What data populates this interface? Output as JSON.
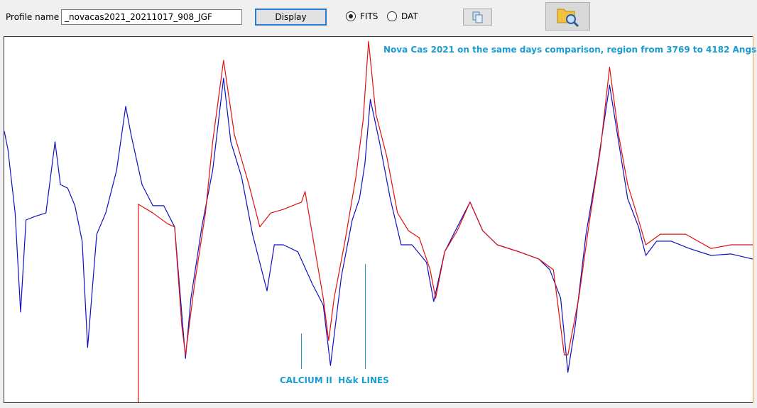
{
  "ui": {
    "profile_label": "Profile name :",
    "profile_value": "_novacas2021_20211017_908_JGF",
    "display_button": "Display",
    "radio_fits": "FITS",
    "radio_dat": "DAT"
  },
  "chart_data": {
    "type": "line",
    "title": "Nova Cas 2021 on the same days comparison, region from 3769 to 4182 Angs.",
    "annotations": [
      "CALCIUM II  H&k LINES"
    ],
    "xlim": [
      3769,
      4182
    ],
    "ylim": [
      0,
      100
    ],
    "grid": false,
    "series": [
      {
        "color": "#1010c0",
        "x": [
          3769,
          3771,
          3775,
          3778,
          3781,
          3786,
          3792,
          3797,
          3800,
          3804,
          3808,
          3812,
          3815,
          3820,
          3825,
          3831,
          3836,
          3839,
          3845,
          3851,
          3857,
          3863,
          3869,
          3872,
          3878,
          3884,
          3890,
          3894,
          3900,
          3906,
          3914,
          3918,
          3923,
          3931,
          3939,
          3945,
          3949,
          3955,
          3961,
          3965,
          3968,
          3971,
          3976,
          3982,
          3988,
          3994,
          4002,
          4006,
          4012,
          4019,
          4026,
          4033,
          4041,
          4053,
          4064,
          4070,
          4076,
          4080,
          4084,
          4090,
          4096,
          4103,
          4108,
          4113,
          4119,
          4123,
          4129,
          4137,
          4147,
          4159,
          4170,
          4182
        ],
        "values": [
          74.2,
          69.3,
          51.8,
          24.7,
          49.9,
          50.9,
          51.8,
          71.3,
          59.6,
          58.6,
          53.8,
          44.1,
          15.0,
          46.0,
          51.8,
          63.5,
          81.0,
          73.2,
          59.6,
          53.8,
          53.8,
          48.0,
          12.0,
          28.5,
          48.0,
          63.5,
          88.7,
          71.3,
          61.6,
          46.0,
          30.5,
          43.1,
          43.1,
          41.2,
          32.4,
          26.6,
          10.1,
          34.4,
          49.9,
          55.7,
          65.4,
          82.9,
          71.3,
          55.7,
          43.1,
          43.1,
          38.3,
          27.6,
          41.2,
          48.0,
          54.8,
          47.0,
          43.1,
          41.2,
          39.2,
          36.3,
          28.5,
          8.2,
          20.8,
          46.0,
          63.5,
          86.8,
          71.3,
          55.7,
          48.0,
          40.2,
          44.1,
          44.1,
          42.1,
          40.2,
          40.6,
          39.2
        ]
      },
      {
        "color": "#e01010",
        "x": [
          3843,
          3843,
          3851,
          3859,
          3863,
          3867,
          3869,
          3874,
          3880,
          3884,
          3890,
          3896,
          3904,
          3910,
          3916,
          3923,
          3933,
          3935,
          3939,
          3945,
          3948,
          3951,
          3957,
          3963,
          3967,
          3970,
          3974,
          3980,
          3986,
          3992,
          3998,
          4004,
          4007,
          4012,
          4019,
          4026,
          4033,
          4041,
          4053,
          4064,
          4072,
          4078,
          4080,
          4086,
          4092,
          4098,
          4103,
          4108,
          4113,
          4119,
          4123,
          4131,
          4145,
          4159,
          4170,
          4182
        ],
        "values": [
          0,
          54.2,
          51.8,
          48.9,
          48.0,
          20.8,
          13.0,
          32.4,
          51.8,
          71.3,
          93.6,
          73.2,
          59.6,
          48.0,
          51.8,
          52.8,
          54.8,
          57.7,
          46.0,
          28.5,
          16.9,
          28.5,
          44.1,
          61.6,
          77.1,
          98.8,
          79.0,
          67.4,
          51.8,
          47.0,
          45.0,
          36.3,
          28.5,
          41.2,
          47.0,
          54.8,
          47.0,
          43.1,
          41.2,
          39.2,
          36.3,
          13.0,
          13.0,
          28.5,
          49.9,
          69.3,
          91.7,
          73.2,
          59.6,
          49.9,
          43.1,
          46.0,
          46.0,
          42.1,
          43.1,
          43.1
        ]
      }
    ]
  }
}
